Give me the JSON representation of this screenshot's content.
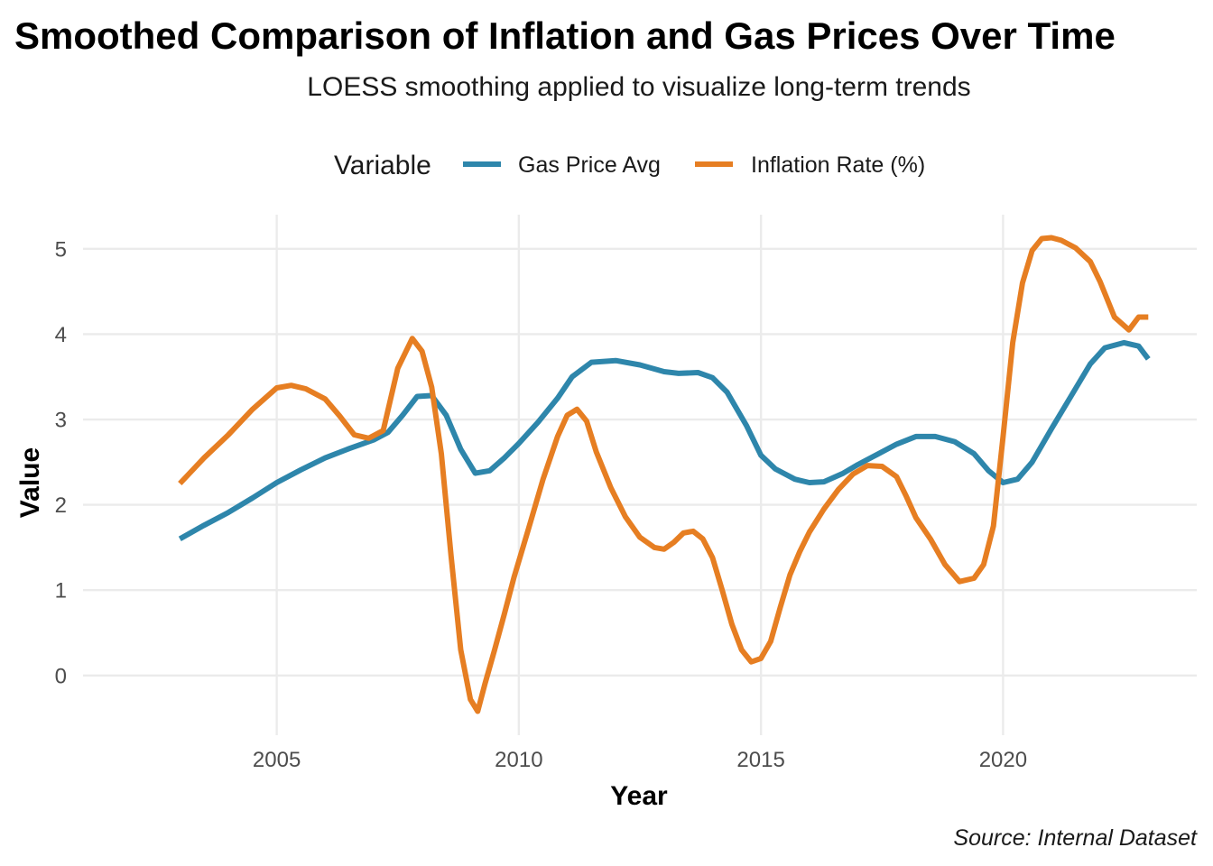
{
  "chart_data": {
    "type": "line",
    "title": "Smoothed Comparison of Inflation and Gas Prices Over Time",
    "subtitle": "LOESS smoothing applied to visualize long-term trends",
    "caption": "Source: Internal Dataset",
    "xlabel": "Year",
    "ylabel": "Value",
    "xlim": [
      2001.0,
      2024.0
    ],
    "ylim": [
      -0.7,
      5.4
    ],
    "x_ticks": [
      2005,
      2010,
      2015,
      2020
    ],
    "y_ticks": [
      0,
      1,
      2,
      3,
      4,
      5
    ],
    "grid": true,
    "legend": {
      "title": "Variable",
      "position": "top",
      "items": [
        {
          "name": "Gas Price Avg",
          "color": "#2e86ab"
        },
        {
          "name": "Inflation Rate (%)",
          "color": "#e67e22"
        }
      ]
    },
    "series": [
      {
        "name": "Gas Price Avg",
        "color": "#2e86ab",
        "x": [
          2003.0,
          2003.5,
          2004.0,
          2004.5,
          2005.0,
          2005.5,
          2006.0,
          2006.5,
          2007.0,
          2007.3,
          2007.6,
          2007.9,
          2008.2,
          2008.5,
          2008.8,
          2009.1,
          2009.4,
          2009.7,
          2010.0,
          2010.4,
          2010.8,
          2011.1,
          2011.5,
          2012.0,
          2012.5,
          2013.0,
          2013.3,
          2013.7,
          2014.0,
          2014.3,
          2014.7,
          2015.0,
          2015.3,
          2015.7,
          2016.0,
          2016.3,
          2016.7,
          2017.0,
          2017.4,
          2017.8,
          2018.2,
          2018.6,
          2019.0,
          2019.4,
          2019.7,
          2020.0,
          2020.3,
          2020.6,
          2021.0,
          2021.4,
          2021.8,
          2022.1,
          2022.5,
          2022.8,
          2023.0
        ],
        "y": [
          1.6,
          1.76,
          1.91,
          2.08,
          2.26,
          2.41,
          2.55,
          2.66,
          2.76,
          2.85,
          3.05,
          3.27,
          3.28,
          3.05,
          2.65,
          2.37,
          2.4,
          2.55,
          2.72,
          2.97,
          3.25,
          3.5,
          3.67,
          3.69,
          3.64,
          3.56,
          3.54,
          3.55,
          3.49,
          3.32,
          2.93,
          2.58,
          2.42,
          2.3,
          2.26,
          2.27,
          2.37,
          2.47,
          2.59,
          2.71,
          2.8,
          2.8,
          2.74,
          2.6,
          2.4,
          2.26,
          2.3,
          2.5,
          2.89,
          3.27,
          3.65,
          3.84,
          3.9,
          3.86,
          3.71
        ]
      },
      {
        "name": "Inflation Rate (%)",
        "color": "#e67e22",
        "x": [
          2003.0,
          2003.5,
          2004.0,
          2004.5,
          2005.0,
          2005.3,
          2005.6,
          2006.0,
          2006.3,
          2006.6,
          2006.9,
          2007.2,
          2007.5,
          2007.8,
          2008.0,
          2008.2,
          2008.4,
          2008.6,
          2008.8,
          2009.0,
          2009.15,
          2009.3,
          2009.5,
          2009.7,
          2009.9,
          2010.2,
          2010.5,
          2010.8,
          2011.0,
          2011.2,
          2011.4,
          2011.6,
          2011.9,
          2012.2,
          2012.5,
          2012.8,
          2013.0,
          2013.2,
          2013.4,
          2013.6,
          2013.8,
          2014.0,
          2014.2,
          2014.4,
          2014.6,
          2014.8,
          2015.0,
          2015.2,
          2015.4,
          2015.6,
          2015.8,
          2016.0,
          2016.3,
          2016.6,
          2016.9,
          2017.2,
          2017.5,
          2017.8,
          2018.0,
          2018.2,
          2018.5,
          2018.8,
          2019.1,
          2019.4,
          2019.6,
          2019.8,
          2020.0,
          2020.2,
          2020.4,
          2020.6,
          2020.8,
          2021.0,
          2021.2,
          2021.5,
          2021.8,
          2022.0,
          2022.3,
          2022.6,
          2022.8,
          2023.0
        ],
        "y": [
          2.25,
          2.55,
          2.82,
          3.12,
          3.37,
          3.4,
          3.36,
          3.24,
          3.04,
          2.82,
          2.78,
          2.87,
          3.6,
          3.95,
          3.8,
          3.38,
          2.6,
          1.4,
          0.3,
          -0.28,
          -0.42,
          -0.1,
          0.3,
          0.72,
          1.15,
          1.72,
          2.3,
          2.8,
          3.05,
          3.12,
          2.98,
          2.62,
          2.2,
          1.86,
          1.62,
          1.5,
          1.48,
          1.56,
          1.67,
          1.69,
          1.6,
          1.38,
          1.0,
          0.6,
          0.3,
          0.16,
          0.2,
          0.4,
          0.8,
          1.18,
          1.45,
          1.68,
          1.95,
          2.18,
          2.36,
          2.46,
          2.45,
          2.33,
          2.1,
          1.85,
          1.6,
          1.3,
          1.1,
          1.14,
          1.3,
          1.75,
          2.8,
          3.9,
          4.6,
          4.98,
          5.12,
          5.13,
          5.1,
          5.01,
          4.85,
          4.62,
          4.2,
          4.05,
          4.2,
          4.2
        ]
      }
    ]
  }
}
